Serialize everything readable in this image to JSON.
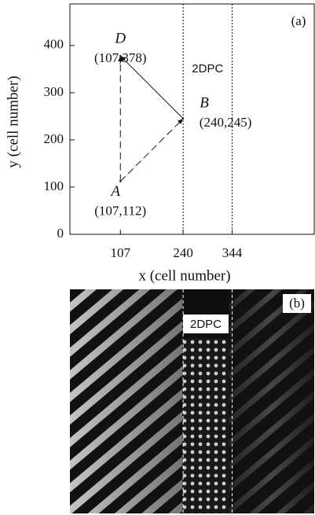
{
  "chart_data": {
    "type": "points",
    "panel_label": "(a)",
    "xlabel": "x (cell number)",
    "ylabel": "y (cell number)",
    "xlim": [
      0,
      518
    ],
    "ylim": [
      0,
      488
    ],
    "xticks": [
      107,
      240,
      344
    ],
    "yticks": [
      0,
      100,
      200,
      300,
      400
    ],
    "region": {
      "label": "2DPC",
      "x": [
        240,
        344
      ]
    },
    "points": [
      {
        "name": "A",
        "x": 107,
        "y": 112,
        "label": "(107,112)"
      },
      {
        "name": "B",
        "x": 240,
        "y": 245,
        "label": "(240,245)"
      },
      {
        "name": "D",
        "x": 107,
        "y": 378,
        "label": "(107,378)"
      }
    ]
  },
  "panel_b": {
    "label": "(b)",
    "region_label": "2DPC"
  }
}
